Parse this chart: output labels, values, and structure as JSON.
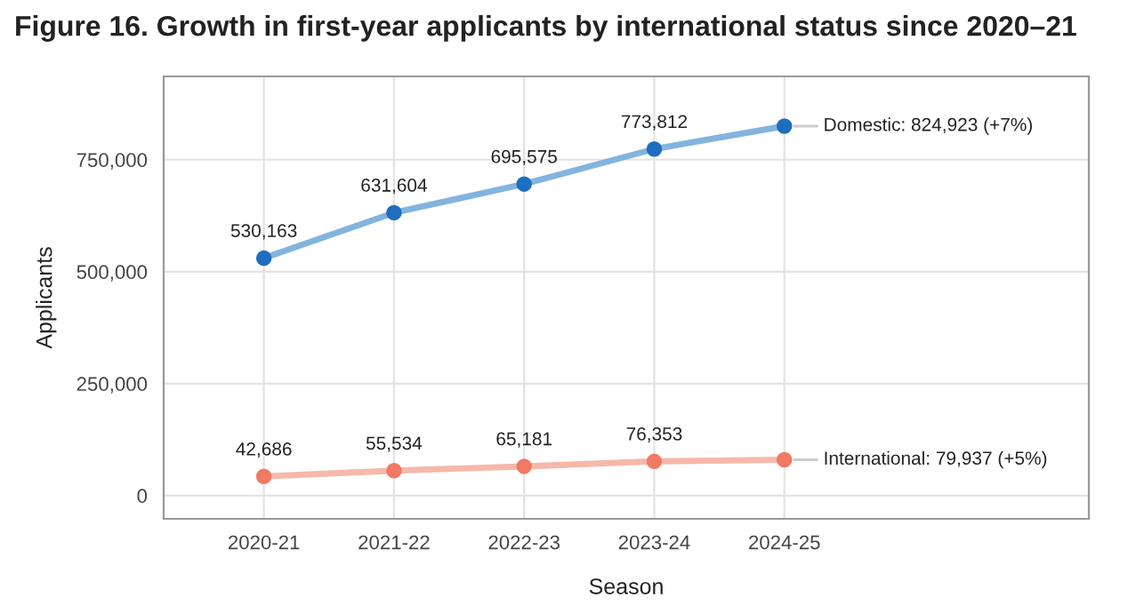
{
  "chart_data": {
    "type": "line",
    "title": "Figure 16. Growth in first-year applicants by international status since 2020–21",
    "xlabel": "Season",
    "ylabel": "Applicants",
    "categories": [
      "2020-21",
      "2021-22",
      "2022-23",
      "2023-24",
      "2024-25"
    ],
    "series": [
      {
        "color": "#82b4de",
        "colors": [
          "#1f6dbf",
          "#1f6dbf",
          "#1f6dbf",
          "#1f6dbf",
          "#1f6dbf"
        ],
        "values": [
          530163,
          631604,
          695575,
          773812,
          824923
        ],
        "value_labels": [
          "530,163",
          "631,604",
          "695,575",
          "773,812",
          null
        ]
      },
      {
        "color": "#f6b8aa",
        "colors": [
          "#f07a64",
          "#f07a64",
          "#f07a64",
          "#f07a64",
          "#f07a64"
        ],
        "values": [
          42686,
          55534,
          65181,
          76353,
          79937
        ],
        "value_labels": [
          "42,686",
          "55,534",
          "65,181",
          "76,353",
          null
        ]
      }
    ],
    "annotations": [
      {
        "text": "Domestic: 824,923 (+7%)",
        "x": "2024-25",
        "y": 824923
      },
      {
        "text": "International: 79,937 (+5%)",
        "x": "2024-25",
        "y": 79937
      }
    ],
    "ylim": [
      -52000,
      936000
    ],
    "yticks": [
      {
        "value": 0,
        "label": "0"
      },
      {
        "value": 250000,
        "label": "250,000"
      },
      {
        "value": 500000,
        "label": "500,000"
      },
      {
        "value": 750000,
        "label": "750,000"
      }
    ],
    "grid": true,
    "marker": "circle",
    "line_style": "solid"
  }
}
